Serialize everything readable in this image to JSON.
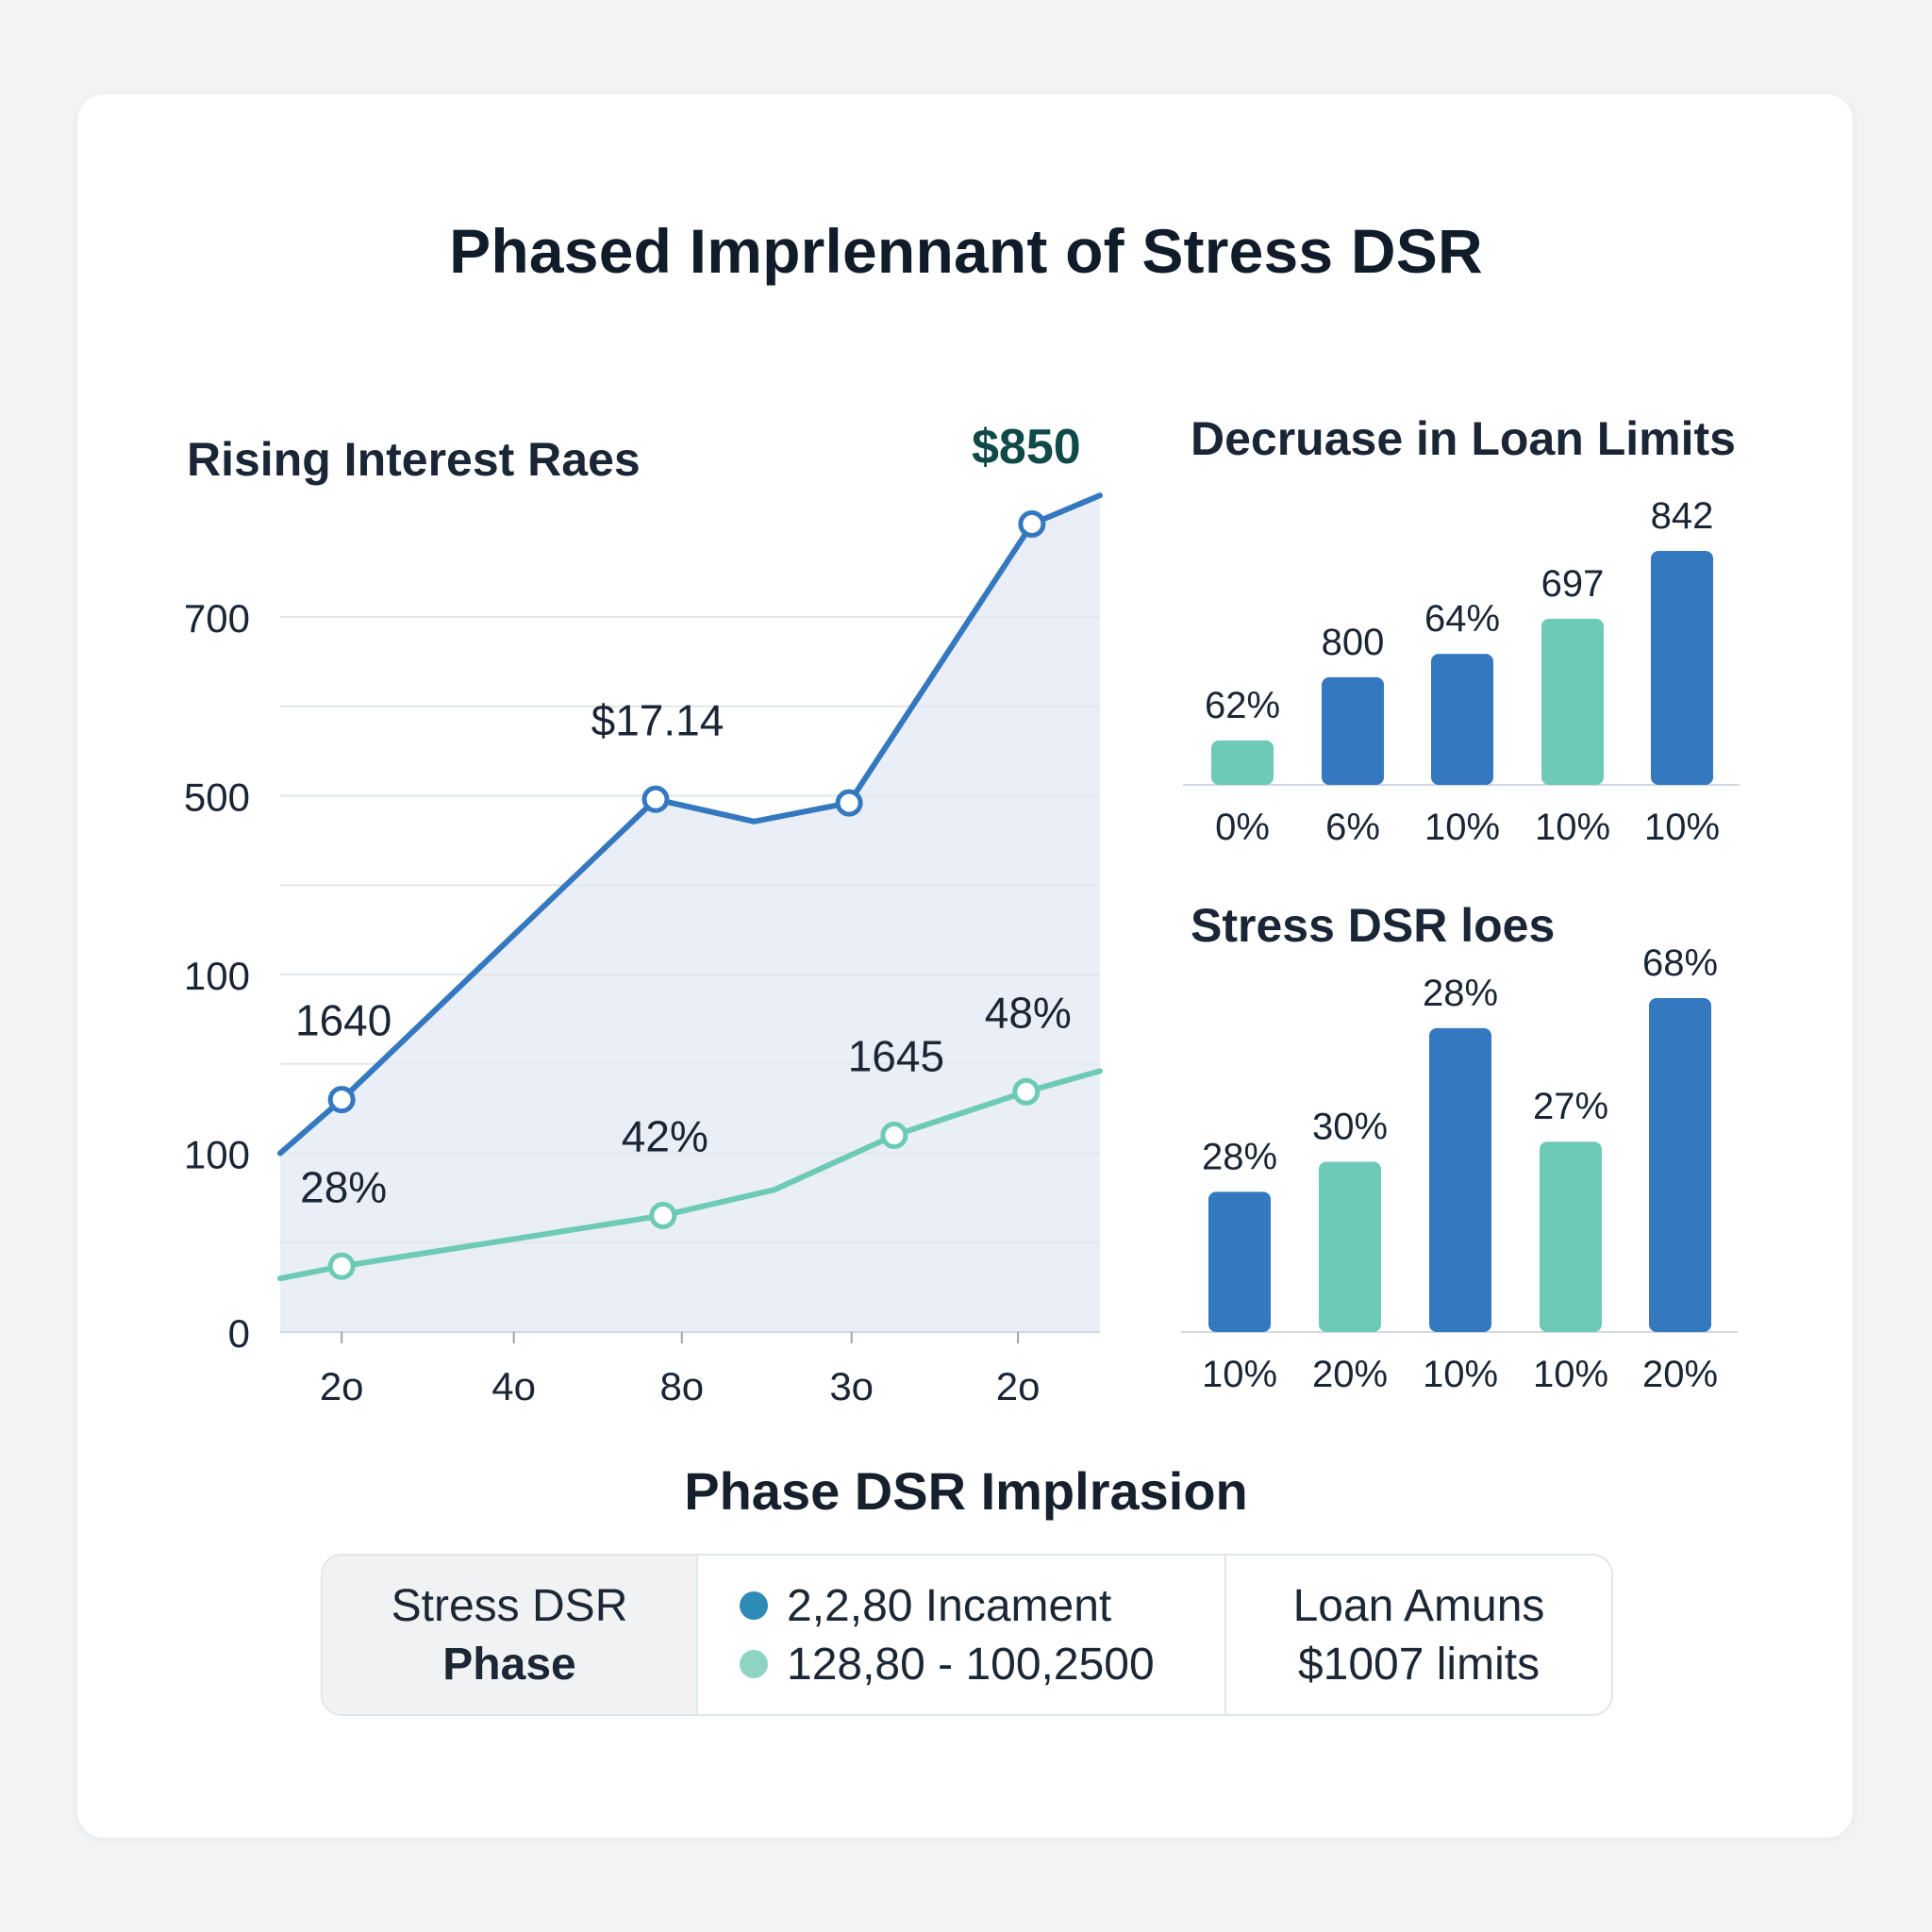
{
  "title": "Phased Imprlennant of Stress DSR",
  "colors": {
    "blue": "#3478c0",
    "teal": "#6ccab7",
    "dark_teal": "#0f4a48",
    "area": "#e6ebf5",
    "grid": "#e3e6ea"
  },
  "chart_data": [
    {
      "type": "line",
      "title": "Rising Interest Raes",
      "annotation_top": "$850",
      "y_tick_labels": [
        "0",
        "100",
        "100",
        "500",
        "700"
      ],
      "y_tick_fractions": [
        0,
        0.25,
        0.5,
        0.75,
        1.0
      ],
      "x_tick_labels": [
        "2o",
        "4o",
        "8o",
        "3o",
        "2o"
      ],
      "x_tick_fractions": [
        0.075,
        0.285,
        0.49,
        0.697,
        0.9
      ],
      "grid": true,
      "ylim_fraction": [
        0,
        1.0
      ],
      "series": [
        {
          "color": "#3478c0",
          "area": true,
          "points": [
            {
              "x": 0,
              "y": 0.25,
              "marker": false
            },
            {
              "x": 0.075,
              "y": 0.325,
              "marker": true,
              "label": "1640"
            },
            {
              "x": 0.458,
              "y": 0.745,
              "marker": true,
              "label": "$17.14"
            },
            {
              "x": 0.578,
              "y": 0.714,
              "marker": false
            },
            {
              "x": 0.694,
              "y": 0.74,
              "marker": true
            },
            {
              "x": 0.917,
              "y": 1.13,
              "marker": true
            },
            {
              "x": 1.0,
              "y": 1.17,
              "marker": false
            }
          ]
        },
        {
          "color": "#6ccab7",
          "area": false,
          "points": [
            {
              "x": 0,
              "y": 0.075,
              "marker": false
            },
            {
              "x": 0.075,
              "y": 0.092,
              "marker": true,
              "label": "28%"
            },
            {
              "x": 0.467,
              "y": 0.163,
              "marker": true,
              "label": "42%"
            },
            {
              "x": 0.603,
              "y": 0.199,
              "marker": false
            },
            {
              "x": 0.749,
              "y": 0.275,
              "marker": true,
              "label": "1645"
            },
            {
              "x": 0.91,
              "y": 0.336,
              "marker": true,
              "label": "48%"
            },
            {
              "x": 1.0,
              "y": 0.365,
              "marker": false
            }
          ]
        }
      ]
    },
    {
      "type": "bar",
      "title": "Decruase in Loan Limits",
      "categories": [
        "0%",
        "6%",
        "10%",
        "10%",
        "10%"
      ],
      "values": [
        0.19,
        0.46,
        0.56,
        0.71,
        1.0
      ],
      "value_labels": [
        "62%",
        "800",
        "64%",
        "697",
        "842"
      ],
      "bar_colors": [
        "#6ccab7",
        "#3478c0",
        "#3478c0",
        "#6ccab7",
        "#3478c0"
      ]
    },
    {
      "type": "bar",
      "title": "Stress DSR loes",
      "categories": [
        "10%",
        "20%",
        "10%",
        "10%",
        "20%"
      ],
      "values": [
        0.42,
        0.51,
        0.91,
        0.57,
        1.0
      ],
      "value_labels": [
        "28%",
        "30%",
        "28%",
        "27%",
        "68%"
      ],
      "bar_colors": [
        "#3478c0",
        "#6ccab7",
        "#3478c0",
        "#6ccab7",
        "#3478c0"
      ]
    }
  ],
  "legend_section": {
    "title": "Phase DSR Implrasion",
    "col1_line1": "Stress DSR",
    "col1_line2": "Phase",
    "col2_line1": "2,2,80 Incament",
    "col2_line2": "128,80 - 100,2500",
    "col2_dot1_color": "#2e8bb5",
    "col2_dot2_color": "#8fd3c4",
    "col3_line1": "Loan Amuns",
    "col3_line2": "$1007 limits"
  }
}
